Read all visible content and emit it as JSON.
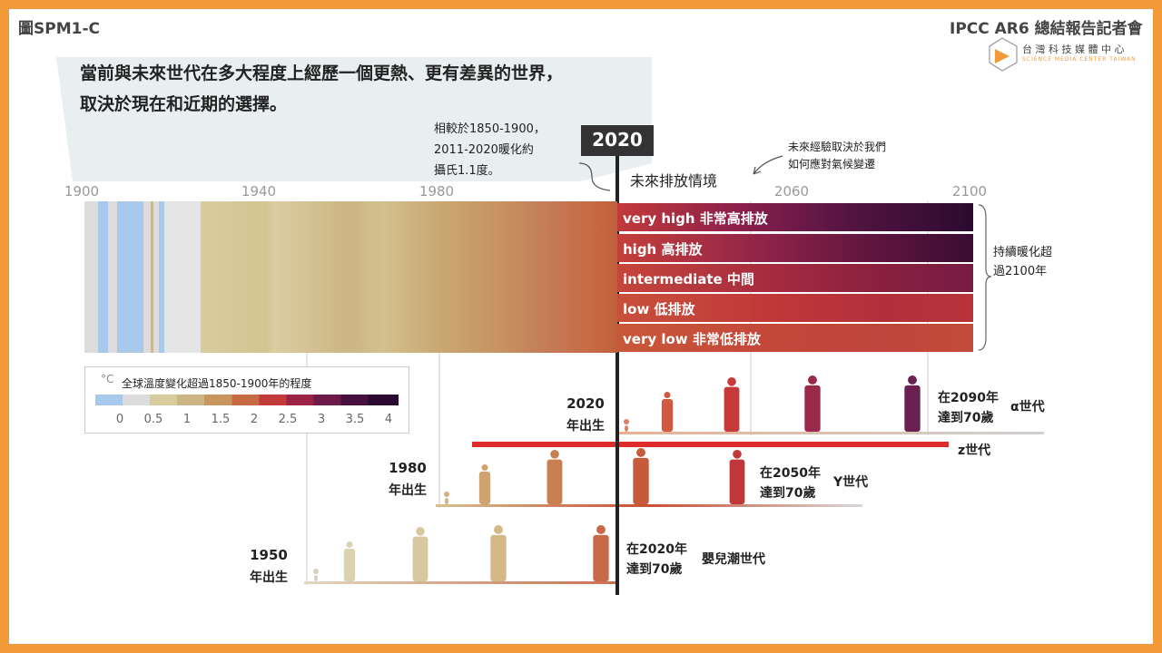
{
  "header": {
    "figure_label": "圖SPM1-C",
    "event": "IPCC AR6 總結報告記者會",
    "logo_zh": "台 灣 科 技 媒 體 中 心",
    "logo_en": "SCIENCE MEDIA CENTER TAIWAN"
  },
  "title": [
    "當前與未來世代在多大程度上經歷一個更熱、更有差異的世界，",
    "取決於現在和近期的選擇。"
  ],
  "note": [
    "相較於1850-1900，",
    "2011-2020暖化約",
    "攝氏1.1度。"
  ],
  "marker": "2020",
  "future_label": "未來排放情境",
  "future_note": [
    "未來經驗取決於我們",
    "如何應對氣候變遷"
  ],
  "axis_years": [
    "1900",
    "1940",
    "1980",
    "2060",
    "2100"
  ],
  "scenarios": [
    "very high 非常高排放",
    "high 高排放",
    "intermediate 中間",
    "low 低排放",
    "very low 非常低排放"
  ],
  "beyond_note": [
    "持續暖化超",
    "過2100年"
  ],
  "legend": {
    "unit": "°C",
    "title": "全球溫度變化超過1850-1900年的程度",
    "ticks": [
      "0",
      "0.5",
      "1",
      "1.5",
      "2",
      "2.5",
      "3",
      "3.5",
      "4"
    ]
  },
  "generations": [
    {
      "birth": [
        "2020",
        "年出生"
      ],
      "age70": [
        "在2090年",
        "達到70歲"
      ],
      "name": "α世代"
    },
    {
      "birth": [
        "1980",
        "年出生"
      ],
      "age70": [
        "在2050年",
        "達到70歲"
      ],
      "name": "Y世代"
    },
    {
      "birth": [
        "1950",
        "年出生"
      ],
      "age70": [
        "在2020年",
        "達到70歲"
      ],
      "name": "嬰兒潮世代"
    }
  ],
  "z_generation": "z世代"
}
